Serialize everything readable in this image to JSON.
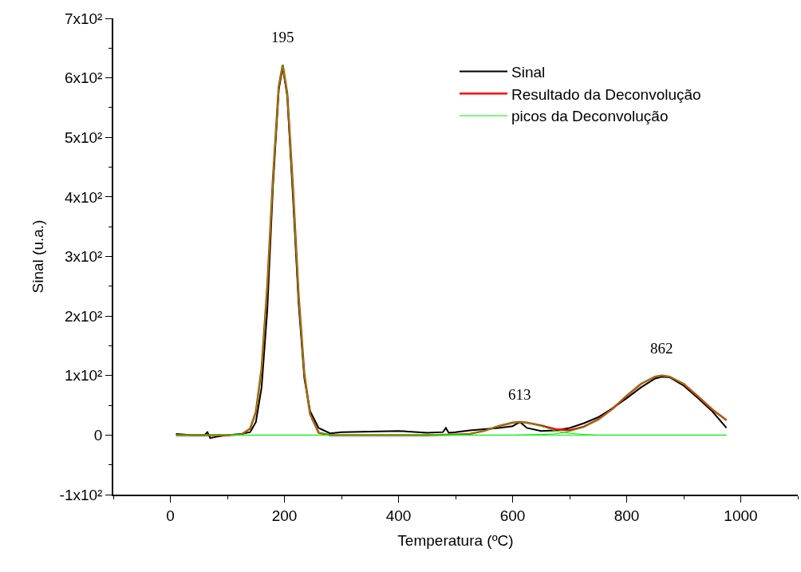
{
  "chart_data": {
    "type": "line",
    "xlabel": "Temperatura (ºC)",
    "ylabel": "Sinal (u.a.)",
    "xlim": [
      -100,
      1100
    ],
    "xticks": [
      0,
      200,
      400,
      600,
      800,
      1000
    ],
    "ylim": [
      -100,
      700
    ],
    "yticks": [
      {
        "value": -100,
        "label": "-1x10²"
      },
      0,
      {
        "value": 100,
        "label": "1x10²"
      },
      {
        "value": 200,
        "label": "2x10²"
      },
      {
        "value": 300,
        "label": "3x10²"
      },
      {
        "value": 400,
        "label": "4x10²"
      },
      {
        "value": 500,
        "label": "5x10²"
      },
      {
        "value": 600,
        "label": "6x10²"
      },
      {
        "value": 700,
        "label": "7x10²"
      }
    ],
    "legend": "top right",
    "marker": "none",
    "line_style": "solid",
    "annotations": [
      {
        "text": "195",
        "x": 197,
        "y": 622
      },
      {
        "text": "613",
        "x": 613,
        "y": 22
      },
      {
        "text": "862",
        "x": 862,
        "y": 100
      }
    ],
    "series": [
      {
        "name": "Sinal",
        "color": "#000000",
        "x": [
          10,
          40,
          60,
          65,
          70,
          80,
          100,
          125,
          140,
          150,
          160,
          170,
          180,
          190,
          197,
          205,
          215,
          225,
          235,
          245,
          260,
          280,
          300,
          350,
          400,
          450,
          478,
          483,
          488,
          500,
          525,
          550,
          575,
          600,
          613,
          625,
          650,
          675,
          700,
          725,
          750,
          775,
          800,
          825,
          850,
          862,
          875,
          900,
          925,
          950,
          975
        ],
        "values": [
          2,
          0,
          0,
          5,
          -5,
          -3,
          0,
          2,
          5,
          22,
          80,
          210,
          420,
          580,
          618,
          570,
          400,
          220,
          95,
          40,
          12,
          3,
          5,
          6,
          7,
          4,
          5,
          12,
          4,
          5,
          8,
          10,
          12,
          15,
          22,
          12,
          7,
          8,
          12,
          20,
          30,
          45,
          62,
          80,
          95,
          98,
          97,
          83,
          62,
          40,
          12
        ]
      },
      {
        "name": "Resultado da Deconvolução",
        "color": "#ff0000",
        "x": [
          10,
          50,
          100,
          125,
          140,
          150,
          160,
          170,
          180,
          190,
          197,
          205,
          215,
          225,
          235,
          245,
          260,
          280,
          300,
          350,
          400,
          450,
          500,
          525,
          550,
          575,
          600,
          613,
          625,
          650,
          675,
          700,
          725,
          750,
          775,
          800,
          825,
          850,
          862,
          875,
          900,
          925,
          950,
          975
        ],
        "values": [
          0,
          0,
          0,
          1,
          11,
          39,
          112,
          250,
          433,
          585,
          622,
          574,
          415,
          233,
          102,
          35,
          4,
          0,
          0,
          0,
          0,
          0,
          1,
          2,
          7,
          15,
          21,
          22,
          21,
          16,
          10,
          8,
          14,
          26,
          44,
          66,
          86,
          98,
          100,
          98,
          86,
          65,
          43,
          25
        ]
      },
      {
        "name": "picos da Deconvolução",
        "color": "#00ee00",
        "x": [
          10,
          50,
          100,
          125,
          140,
          150,
          160,
          170,
          180,
          190,
          197,
          205,
          215,
          225,
          235,
          245,
          260,
          280,
          300,
          350,
          400,
          450,
          500,
          550,
          600,
          650,
          700,
          750,
          800,
          850,
          900,
          950,
          975
        ],
        "values": [
          0,
          0,
          0,
          1,
          11,
          39,
          112,
          250,
          433,
          585,
          622,
          574,
          415,
          233,
          102,
          35,
          4,
          0,
          0,
          0,
          0,
          0,
          0,
          0,
          0,
          0,
          0,
          0,
          0,
          0,
          0,
          0,
          0
        ]
      },
      {
        "color": "#00ee00",
        "x": [
          10,
          100,
          200,
          300,
          400,
          500,
          525,
          550,
          575,
          600,
          613,
          625,
          650,
          675,
          700,
          725,
          750,
          800,
          900,
          975
        ],
        "values": [
          0,
          0,
          0,
          0,
          0,
          1,
          2,
          7,
          15,
          21,
          22,
          21,
          15,
          7,
          3,
          1,
          0,
          0,
          0,
          0
        ]
      },
      {
        "color": "#00ee00",
        "x": [
          10,
          100,
          200,
          300,
          400,
          500,
          600,
          650,
          675,
          700,
          725,
          750,
          775,
          800,
          825,
          850,
          862,
          875,
          900,
          925,
          950,
          975
        ],
        "values": [
          0,
          0,
          0,
          0,
          0,
          0,
          0,
          1,
          2,
          6,
          13,
          26,
          44,
          66,
          86,
          98,
          100,
          98,
          86,
          65,
          43,
          25
        ]
      }
    ]
  }
}
